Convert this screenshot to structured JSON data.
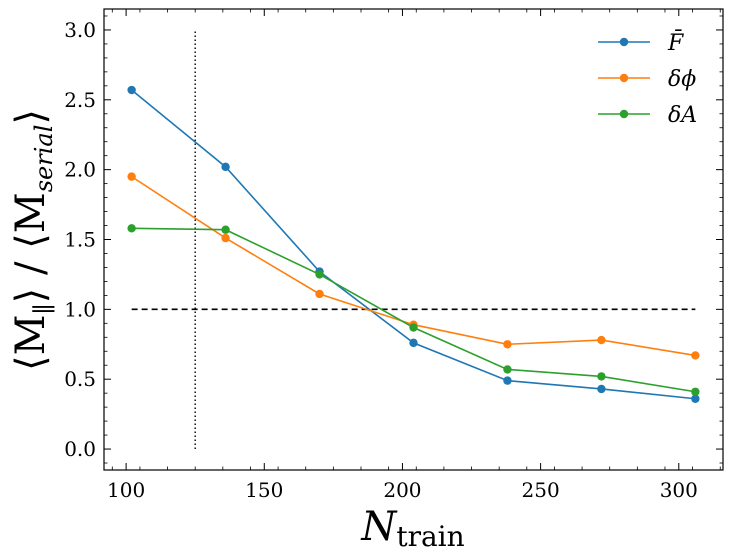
{
  "chart_data": {
    "type": "line",
    "title": "",
    "xlabel": "N",
    "xlabel_sub": "train",
    "ylabel": "⟨M∥⟩ / ⟨Mserial⟩",
    "ylabel_left": "⟨M",
    "ylabel_left_sub": "∥",
    "ylabel_mid": "⟩ / ⟨M",
    "ylabel_right_sub": "serial",
    "ylabel_end": "⟩",
    "xlim": [
      92,
      316
    ],
    "ylim": [
      -0.15,
      3.15
    ],
    "xticks": [
      100,
      150,
      200,
      250,
      300
    ],
    "yticks": [
      0.0,
      0.5,
      1.0,
      1.5,
      2.0,
      2.5,
      3.0
    ],
    "xtick_labels": [
      "100",
      "150",
      "200",
      "250",
      "300"
    ],
    "ytick_labels": [
      "0.0",
      "0.5",
      "1.0",
      "1.5",
      "2.0",
      "2.5",
      "3.0"
    ],
    "x": [
      102,
      136,
      170,
      204,
      238,
      272,
      306
    ],
    "series": [
      {
        "name": "F̄",
        "color": "#1f77b4",
        "values": [
          2.57,
          2.02,
          1.27,
          0.76,
          0.49,
          0.43,
          0.36
        ]
      },
      {
        "name": "δϕ",
        "color": "#ff7f0e",
        "values": [
          1.95,
          1.51,
          1.11,
          0.89,
          0.75,
          0.78,
          0.67
        ]
      },
      {
        "name": "δA",
        "color": "#2ca02c",
        "values": [
          1.58,
          1.57,
          1.25,
          0.87,
          0.57,
          0.52,
          0.41
        ]
      }
    ],
    "reference_hline": {
      "y": 1.0,
      "x_from": 102,
      "x_to": 306,
      "style": "dashed"
    },
    "reference_vline": {
      "x": 125,
      "y_from": 0.0,
      "y_to": 3.0,
      "style": "dotted"
    },
    "legend_position": "top-right"
  }
}
